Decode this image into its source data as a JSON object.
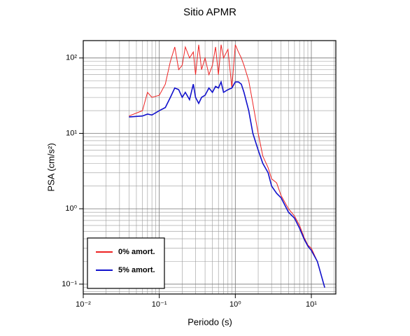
{
  "chart_data": {
    "type": "line",
    "title": "Sitio APMR",
    "x_label": "Periodo (s)",
    "y_label": "PSA (cm/s²)",
    "x_log": true,
    "y_log": true,
    "grid": true,
    "minor_grid": true,
    "legend_position": "lower-left",
    "xlim": [
      0.01,
      21
    ],
    "ylim": [
      0.074,
      170
    ],
    "xticks": [
      {
        "value": 0.01,
        "label": "10⁻²"
      },
      {
        "value": 0.1,
        "label": "10⁻¹"
      },
      {
        "value": 1,
        "label": "10⁰"
      },
      {
        "value": 10,
        "label": "10¹"
      }
    ],
    "yticks": [
      {
        "value": 0.1,
        "label": "10⁻¹"
      },
      {
        "value": 1,
        "label": "10⁰"
      },
      {
        "value": 10,
        "label": "10¹"
      },
      {
        "value": 100,
        "label": "10²"
      }
    ],
    "x": [
      0.04,
      0.06,
      0.07,
      0.08,
      0.1,
      0.12,
      0.14,
      0.16,
      0.18,
      0.2,
      0.22,
      0.25,
      0.28,
      0.3,
      0.33,
      0.36,
      0.4,
      0.45,
      0.5,
      0.55,
      0.6,
      0.65,
      0.7,
      0.8,
      0.9,
      1.0,
      1.1,
      1.2,
      1.3,
      1.5,
      1.7,
      2.0,
      2.3,
      2.7,
      3.0,
      3.5,
      4.0,
      5.0,
      6,
      7,
      8,
      9,
      10,
      12,
      15
    ],
    "series": [
      {
        "name": "0% amort.",
        "color": "#ee2222",
        "width": 1,
        "values": [
          17,
          20,
          35,
          30,
          32,
          45,
          90,
          140,
          70,
          80,
          140,
          100,
          120,
          60,
          150,
          70,
          100,
          60,
          80,
          140,
          60,
          150,
          100,
          130,
          40,
          150,
          120,
          100,
          80,
          50,
          25,
          10,
          5,
          3.5,
          2.5,
          2.2,
          1.5,
          1.0,
          0.8,
          0.6,
          0.42,
          0.33,
          0.3,
          0.2,
          0.09
        ]
      },
      {
        "name": "5% amort.",
        "color": "#1111cc",
        "width": 1.6,
        "values": [
          16.5,
          17,
          18,
          17.5,
          20,
          22,
          30,
          40,
          38,
          30,
          35,
          28,
          45,
          30,
          25,
          30,
          32,
          40,
          35,
          42,
          40,
          48,
          35,
          38,
          40,
          48,
          48,
          45,
          35,
          20,
          10,
          6,
          4,
          3,
          2,
          1.6,
          1.4,
          0.9,
          0.75,
          0.55,
          0.4,
          0.32,
          0.28,
          0.2,
          0.09
        ]
      }
    ]
  }
}
